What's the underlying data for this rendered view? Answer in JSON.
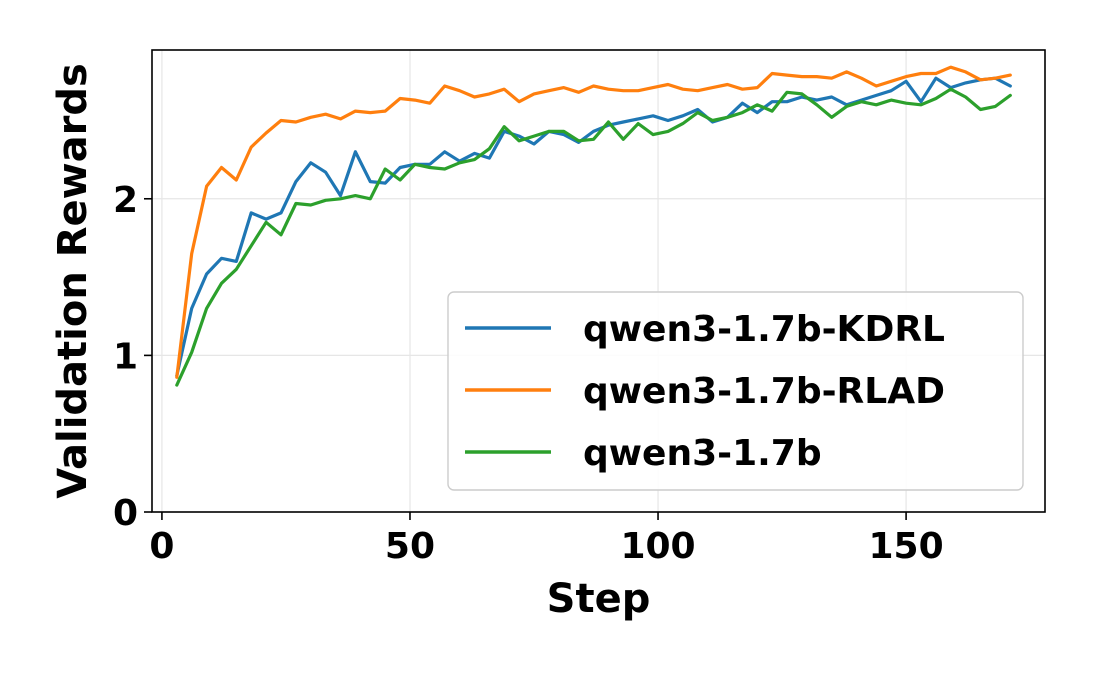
{
  "chart_data": {
    "type": "line",
    "title": "",
    "xlabel": "Step",
    "ylabel": "Validation Rewards",
    "xlim": [
      -2,
      178
    ],
    "ylim": [
      0,
      2.95
    ],
    "xticks": [
      0,
      50,
      100,
      150
    ],
    "yticks": [
      0,
      1,
      2
    ],
    "grid": true,
    "legend": "lower-right",
    "x": [
      3,
      6,
      9,
      12,
      15,
      18,
      21,
      24,
      27,
      30,
      33,
      36,
      39,
      42,
      45,
      48,
      51,
      54,
      57,
      60,
      63,
      66,
      69,
      72,
      75,
      78,
      81,
      84,
      87,
      90,
      93,
      96,
      99,
      102,
      105,
      108,
      111,
      114,
      117,
      120,
      123,
      126,
      129,
      132,
      135,
      138,
      141,
      144,
      147,
      150,
      153,
      156,
      159,
      162,
      165,
      168,
      171
    ],
    "series": [
      {
        "name": "qwen3-1.7b-KDRL",
        "color": "#1f77b4",
        "values": [
          0.87,
          1.3,
          1.52,
          1.62,
          1.6,
          1.91,
          1.87,
          1.91,
          2.11,
          2.23,
          2.17,
          2.02,
          2.3,
          2.11,
          2.1,
          2.2,
          2.22,
          2.22,
          2.3,
          2.24,
          2.29,
          2.26,
          2.43,
          2.4,
          2.35,
          2.43,
          2.41,
          2.36,
          2.43,
          2.47,
          2.49,
          2.51,
          2.53,
          2.5,
          2.53,
          2.57,
          2.49,
          2.52,
          2.61,
          2.55,
          2.62,
          2.62,
          2.65,
          2.63,
          2.65,
          2.6,
          2.63,
          2.66,
          2.69,
          2.75,
          2.62,
          2.77,
          2.71,
          2.74,
          2.76,
          2.77,
          2.72
        ]
      },
      {
        "name": "qwen3-1.7b-RLAD",
        "color": "#ff7f0e",
        "values": [
          0.86,
          1.65,
          2.08,
          2.2,
          2.12,
          2.33,
          2.42,
          2.5,
          2.49,
          2.52,
          2.54,
          2.51,
          2.56,
          2.55,
          2.56,
          2.64,
          2.63,
          2.61,
          2.72,
          2.69,
          2.65,
          2.67,
          2.7,
          2.62,
          2.67,
          2.69,
          2.71,
          2.68,
          2.72,
          2.7,
          2.69,
          2.69,
          2.71,
          2.73,
          2.7,
          2.69,
          2.71,
          2.73,
          2.7,
          2.71,
          2.8,
          2.79,
          2.78,
          2.78,
          2.77,
          2.81,
          2.77,
          2.72,
          2.75,
          2.78,
          2.8,
          2.8,
          2.84,
          2.81,
          2.76,
          2.77,
          2.79
        ]
      },
      {
        "name": "qwen3-1.7b",
        "color": "#2ca02c",
        "values": [
          0.81,
          1.02,
          1.3,
          1.46,
          1.55,
          1.7,
          1.85,
          1.77,
          1.97,
          1.96,
          1.99,
          2.0,
          2.02,
          2.0,
          2.19,
          2.12,
          2.22,
          2.2,
          2.19,
          2.23,
          2.25,
          2.32,
          2.46,
          2.37,
          2.4,
          2.43,
          2.43,
          2.37,
          2.38,
          2.49,
          2.38,
          2.48,
          2.41,
          2.43,
          2.48,
          2.55,
          2.5,
          2.52,
          2.55,
          2.6,
          2.56,
          2.68,
          2.67,
          2.6,
          2.52,
          2.59,
          2.62,
          2.6,
          2.63,
          2.61,
          2.6,
          2.64,
          2.7,
          2.65,
          2.57,
          2.59,
          2.66
        ]
      }
    ]
  }
}
